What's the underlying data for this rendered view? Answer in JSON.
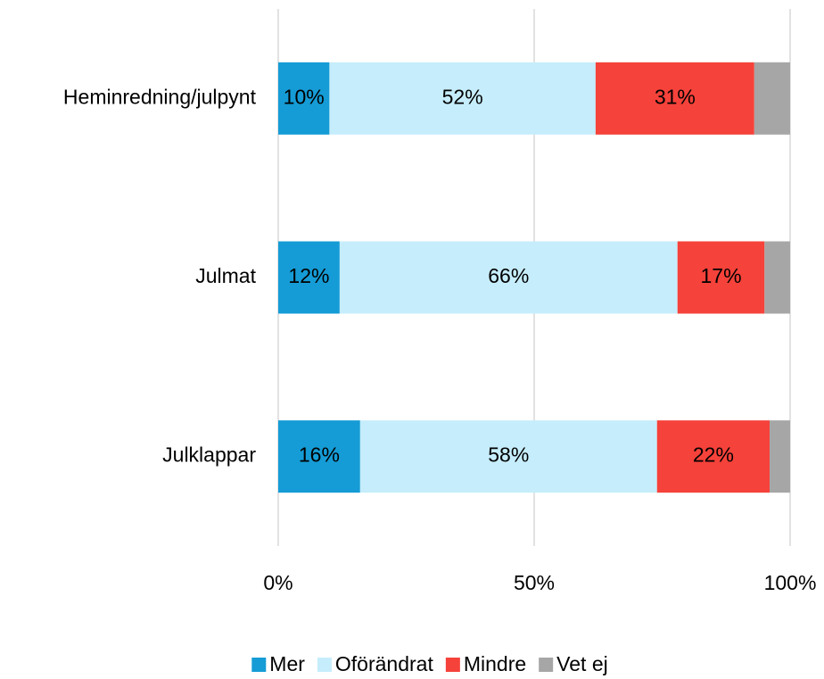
{
  "chart_data": {
    "type": "stacked-bar-horizontal",
    "categories": [
      "Heminredning/julpynt",
      "Julmat",
      "Julklappar"
    ],
    "series": [
      {
        "name": "Mer",
        "color": "#159cd6",
        "values": [
          10,
          12,
          16
        ],
        "value_labels": [
          "10%",
          "12%",
          "16%"
        ]
      },
      {
        "name": "Oförändrat",
        "color": "#c6edfb",
        "values": [
          52,
          66,
          58
        ],
        "value_labels": [
          "52%",
          "66%",
          "58%"
        ]
      },
      {
        "name": "Mindre",
        "color": "#f5423a",
        "values": [
          31,
          17,
          22
        ],
        "value_labels": [
          "31%",
          "17%",
          "22%"
        ]
      },
      {
        "name": "Vet ej",
        "color": "#a6a6a6",
        "values": [
          7,
          5,
          4
        ]
      }
    ],
    "xlim": [
      0,
      100
    ],
    "xticks": [
      {
        "value": 0,
        "label": "0%"
      },
      {
        "value": 50,
        "label": "50%"
      },
      {
        "value": 100,
        "label": "100%"
      }
    ],
    "grid": true,
    "legend": "bottom"
  }
}
